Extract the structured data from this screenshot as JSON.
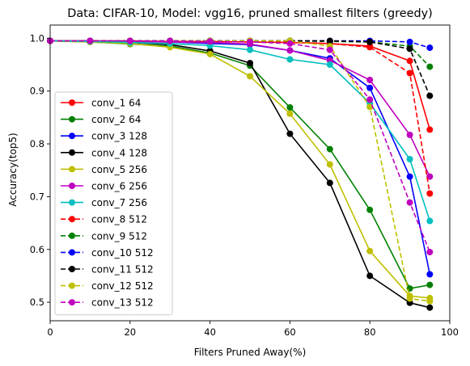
{
  "chart_data": {
    "type": "line",
    "title": "Data: CIFAR-10, Model: vgg16, pruned smallest filters (greedy)",
    "xlabel": "Filters Pruned Away(%)",
    "ylabel": "Accuracy(top5)",
    "xlim": [
      0,
      100
    ],
    "ylim": [
      0.465,
      1.025
    ],
    "xticks": [
      0,
      20,
      40,
      60,
      80,
      100
    ],
    "yticks": [
      0.5,
      0.6,
      0.7,
      0.8,
      0.9,
      1.0
    ],
    "xtick_labels": [
      "0",
      "20",
      "40",
      "60",
      "80",
      "100"
    ],
    "ytick_labels": [
      "0.5",
      "0.6",
      "0.7",
      "0.8",
      "0.9",
      "1.0"
    ],
    "grid": false,
    "legend_position": "lower-left",
    "x": [
      0,
      10,
      20,
      30,
      40,
      50,
      60,
      70,
      80,
      90,
      95
    ],
    "series": [
      {
        "name": "conv_1 64",
        "color": "#ff0000",
        "dash": "solid",
        "values": [
          0.995,
          0.995,
          0.995,
          0.994,
          0.994,
          0.993,
          0.992,
          0.99,
          0.985,
          0.957,
          0.827
        ]
      },
      {
        "name": "conv_2 64",
        "color": "#008000",
        "dash": "solid",
        "values": [
          0.995,
          0.993,
          0.989,
          0.985,
          0.972,
          0.948,
          0.869,
          0.79,
          0.675,
          0.526,
          0.533
        ]
      },
      {
        "name": "conv_3 128",
        "color": "#0000ff",
        "dash": "solid",
        "values": [
          0.995,
          0.995,
          0.994,
          0.993,
          0.99,
          0.988,
          0.977,
          0.962,
          0.906,
          0.738,
          0.553
        ]
      },
      {
        "name": "conv_4 128",
        "color": "#000000",
        "dash": "solid",
        "values": [
          0.995,
          0.994,
          0.992,
          0.988,
          0.976,
          0.953,
          0.819,
          0.726,
          0.55,
          0.499,
          0.49
        ]
      },
      {
        "name": "conv_5 256",
        "color": "#bfbf00",
        "dash": "solid",
        "values": [
          0.995,
          0.993,
          0.99,
          0.983,
          0.97,
          0.928,
          0.857,
          0.761,
          0.597,
          0.512,
          0.508
        ]
      },
      {
        "name": "conv_6 256",
        "color": "#bf00bf",
        "dash": "solid",
        "values": [
          0.995,
          0.995,
          0.994,
          0.993,
          0.992,
          0.989,
          0.977,
          0.958,
          0.921,
          0.817,
          0.738
        ]
      },
      {
        "name": "conv_7 256",
        "color": "#00bfbf",
        "dash": "solid",
        "values": [
          0.995,
          0.994,
          0.992,
          0.99,
          0.986,
          0.978,
          0.96,
          0.95,
          0.877,
          0.771,
          0.654
        ]
      },
      {
        "name": "conv_8 512",
        "color": "#ff0000",
        "dash": "dashed",
        "values": [
          0.995,
          0.995,
          0.995,
          0.995,
          0.994,
          0.994,
          0.993,
          0.99,
          0.983,
          0.934,
          0.706
        ]
      },
      {
        "name": "conv_9 512",
        "color": "#008000",
        "dash": "dashed",
        "values": [
          0.995,
          0.995,
          0.995,
          0.995,
          0.995,
          0.995,
          0.995,
          0.994,
          0.993,
          0.985,
          0.946
        ]
      },
      {
        "name": "conv_10 512",
        "color": "#0000ff",
        "dash": "dashed",
        "values": [
          0.995,
          0.995,
          0.995,
          0.995,
          0.995,
          0.995,
          0.995,
          0.995,
          0.995,
          0.993,
          0.982
        ]
      },
      {
        "name": "conv_11 512",
        "color": "#000000",
        "dash": "dashed",
        "values": [
          0.995,
          0.995,
          0.995,
          0.995,
          0.995,
          0.995,
          0.995,
          0.995,
          0.993,
          0.98,
          0.891
        ]
      },
      {
        "name": "conv_12 512",
        "color": "#bfbf00",
        "dash": "dashed",
        "values": [
          0.995,
          0.995,
          0.995,
          0.995,
          0.995,
          0.995,
          0.995,
          0.985,
          0.87,
          0.507,
          0.502
        ]
      },
      {
        "name": "conv_13 512",
        "color": "#bf00bf",
        "dash": "dashed",
        "values": [
          0.995,
          0.995,
          0.995,
          0.995,
          0.994,
          0.993,
          0.99,
          0.978,
          0.884,
          0.689,
          0.595
        ]
      }
    ]
  }
}
